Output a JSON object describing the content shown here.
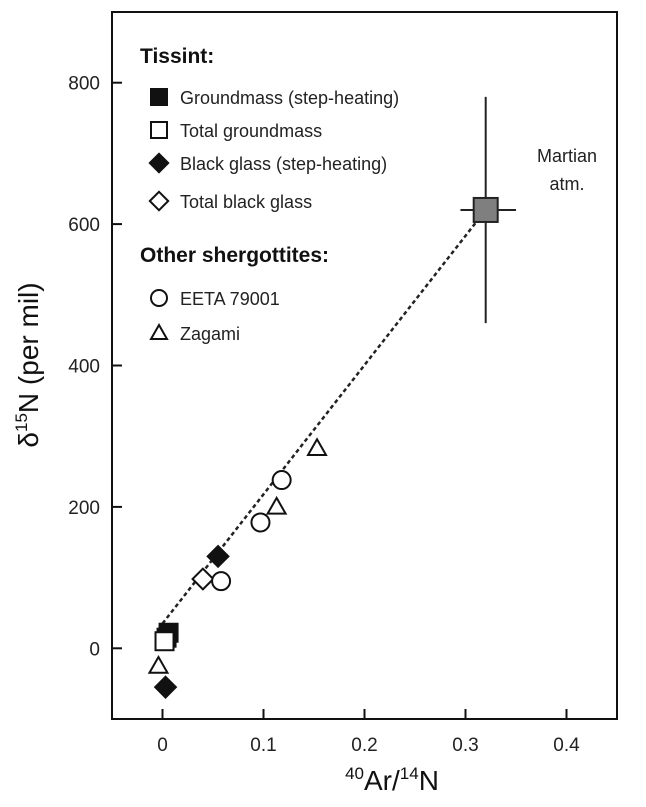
{
  "chart_data": {
    "type": "scatter",
    "xlabel": {
      "sup": "40",
      "base1": "Ar/",
      "sup2": "14",
      "base2": "N"
    },
    "ylabel": {
      "pre": "δ",
      "sup": "15",
      "post": "N (per mil)"
    },
    "xlim": [
      -0.05,
      0.45
    ],
    "ylim": [
      -100,
      900
    ],
    "xticks": [
      0,
      0.1,
      0.2,
      0.3,
      0.4
    ],
    "xtick_labels": [
      "0",
      "0.1",
      "0.2",
      "0.3",
      "0.4"
    ],
    "yticks": [
      0,
      200,
      400,
      600,
      800
    ],
    "ytick_labels": [
      "0",
      "200",
      "400",
      "600",
      "800"
    ],
    "legend": {
      "group1_title": "Tissint:",
      "group2_title": "Other shergottites:",
      "entries": [
        {
          "label": "Groundmass (step-heating)",
          "marker": "square",
          "fill": "#111111"
        },
        {
          "label": "Total groundmass",
          "marker": "square",
          "fill": "#ffffff"
        },
        {
          "label": "Black glass (step-heating)",
          "marker": "diamond",
          "fill": "#111111"
        },
        {
          "label": "Total black glass",
          "marker": "diamond",
          "fill": "#ffffff"
        },
        {
          "label": "EETA 79001",
          "marker": "circle",
          "fill": "#ffffff"
        },
        {
          "label": "Zagami",
          "marker": "triangle",
          "fill": "#ffffff"
        }
      ]
    },
    "series": [
      {
        "name": "Groundmass (step-heating)",
        "marker": "square",
        "fill": "#111111",
        "points": [
          [
            0.006,
            22
          ],
          [
            0.004,
            15
          ]
        ]
      },
      {
        "name": "Total groundmass",
        "marker": "square",
        "fill": "#ffffff",
        "points": [
          [
            0.002,
            10
          ]
        ]
      },
      {
        "name": "Black glass (step-heating)",
        "marker": "diamond",
        "fill": "#111111",
        "points": [
          [
            0.003,
            -55
          ],
          [
            0.055,
            130
          ]
        ]
      },
      {
        "name": "Total black glass",
        "marker": "diamond",
        "fill": "#ffffff",
        "points": [
          [
            0.04,
            98
          ]
        ]
      },
      {
        "name": "EETA 79001",
        "marker": "circle",
        "fill": "#ffffff",
        "points": [
          [
            0.058,
            95
          ],
          [
            0.097,
            178
          ],
          [
            0.118,
            238
          ]
        ]
      },
      {
        "name": "Zagami",
        "marker": "triangle",
        "fill": "#ffffff",
        "points": [
          [
            -0.004,
            -25
          ],
          [
            0.113,
            200
          ],
          [
            0.153,
            283
          ]
        ]
      }
    ],
    "martian_atm": {
      "label_line1": "Martian",
      "label_line2": "atm.",
      "x": 0.32,
      "y": 620,
      "x_err": [
        0.295,
        0.35
      ],
      "y_err": [
        460,
        780
      ],
      "fill": "#7f7f7f"
    },
    "trend_line": {
      "from": [
        0.0,
        35
      ],
      "to": [
        0.32,
        620
      ],
      "style": "dashed"
    }
  }
}
